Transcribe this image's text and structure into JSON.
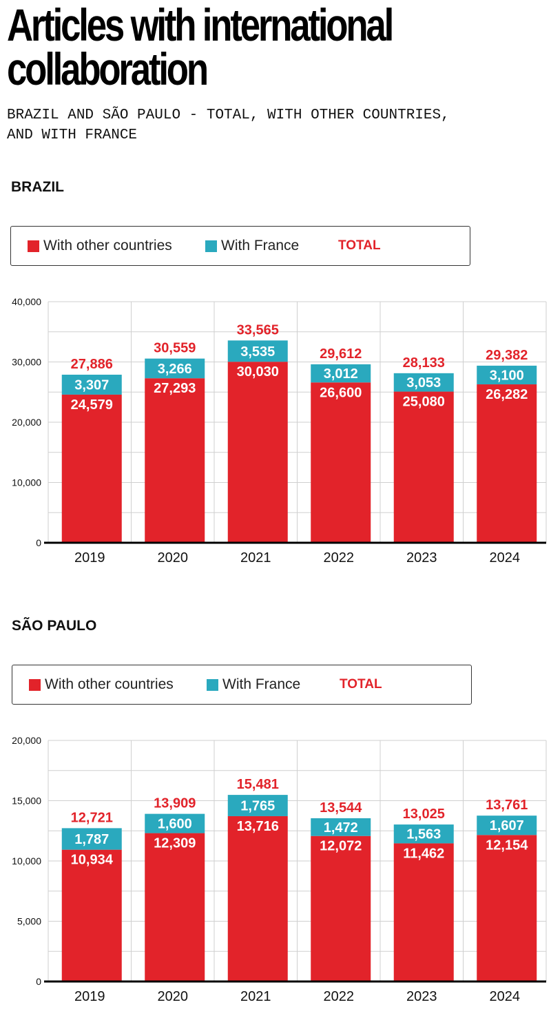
{
  "header": {
    "title_line1": "Articles with international",
    "title_line2": "collaboration",
    "subtitle_line1": "BRAZIL AND SÃO PAULO - TOTAL, WITH OTHER COUNTRIES,",
    "subtitle_line2": "AND WITH FRANCE"
  },
  "colors": {
    "other": "#e2232a",
    "france": "#2aa9be",
    "total": "#e2232a"
  },
  "legend": {
    "other": "With other countries",
    "france": "With France",
    "total": "TOTAL"
  },
  "sections": [
    {
      "title": "BRAZIL"
    },
    {
      "title": "SÃO PAULO"
    }
  ],
  "chart_data": [
    {
      "type": "bar",
      "stacked": true,
      "title": "BRAZIL",
      "categories": [
        "2019",
        "2020",
        "2021",
        "2022",
        "2023",
        "2024"
      ],
      "series": [
        {
          "name": "With other countries",
          "values": [
            24579,
            27293,
            30030,
            26600,
            25080,
            26282
          ]
        },
        {
          "name": "With France",
          "values": [
            3307,
            3266,
            3535,
            3012,
            3053,
            3100
          ]
        }
      ],
      "totals": [
        27886,
        30559,
        33565,
        29612,
        28133,
        29382
      ],
      "ylim": [
        0,
        40000
      ],
      "yticks": [
        0,
        10000,
        20000,
        30000,
        40000
      ],
      "ytick_labels": [
        "0",
        "10,000",
        "20,000",
        "30,000",
        "40,000"
      ],
      "grid": true,
      "legend": "top"
    },
    {
      "type": "bar",
      "stacked": true,
      "title": "SÃO PAULO",
      "categories": [
        "2019",
        "2020",
        "2021",
        "2022",
        "2023",
        "2024"
      ],
      "series": [
        {
          "name": "With other countries",
          "values": [
            10934,
            12309,
            13716,
            12072,
            11462,
            12154
          ]
        },
        {
          "name": "With France",
          "values": [
            1787,
            1600,
            1765,
            1472,
            1563,
            1607
          ]
        }
      ],
      "totals": [
        12721,
        13909,
        15481,
        13544,
        13025,
        13761
      ],
      "ylim": [
        0,
        20000
      ],
      "yticks": [
        0,
        5000,
        10000,
        15000,
        20000
      ],
      "ytick_labels": [
        "0",
        "5,000",
        "10,000",
        "15,000",
        "20,000"
      ],
      "grid": true,
      "legend": "top"
    }
  ]
}
